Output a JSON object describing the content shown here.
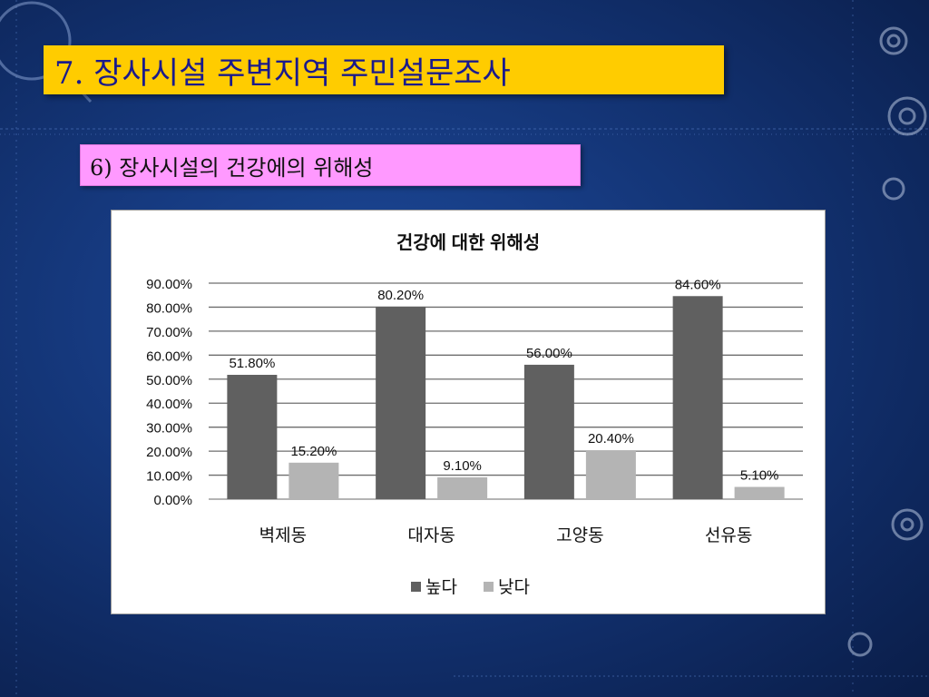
{
  "slide": {
    "title": "7. 장사시설 주변지역 주민설문조사",
    "subtitle": "6) 장사시설의 건강에의 위해성"
  },
  "colors": {
    "title_bg": "#ffcc00",
    "title_text": "#1a1a8c",
    "subtitle_bg": "#ff99ff",
    "series_high": "#606060",
    "series_low": "#b4b4b4"
  },
  "chart_data": {
    "type": "bar",
    "title": "건강에 대한 위해성",
    "categories": [
      "벽제동",
      "대자동",
      "고양동",
      "선유동"
    ],
    "series": [
      {
        "name": "높다",
        "values": [
          51.8,
          80.2,
          56.0,
          84.6
        ],
        "labels": [
          "51.80%",
          "80.20%",
          "56.00%",
          "84.60%"
        ]
      },
      {
        "name": "낮다",
        "values": [
          15.2,
          9.1,
          20.4,
          5.1
        ],
        "labels": [
          "15.20%",
          "9.10%",
          "20.40%",
          "5.10%"
        ]
      }
    ],
    "ylim": [
      0,
      90
    ],
    "y_ticks": [
      "0.00%",
      "10.00%",
      "20.00%",
      "30.00%",
      "40.00%",
      "50.00%",
      "60.00%",
      "70.00%",
      "80.00%",
      "90.00%"
    ],
    "grid": true,
    "legend_position": "bottom"
  }
}
